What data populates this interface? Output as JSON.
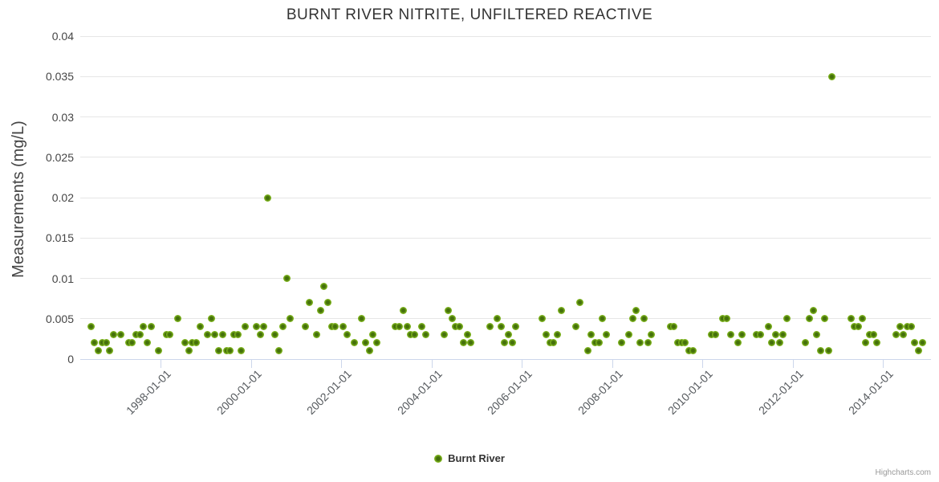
{
  "credits": {
    "label": "Highcharts.com"
  },
  "colors": {
    "marker_fill": "#7db31d",
    "marker_core": "#44700b",
    "grid": "#e6e6e6",
    "axis_line": "#ccd6eb",
    "title_text": "#333333",
    "axis_text": "#454545",
    "xlabel_text": "#565a5e",
    "legend_text": "#333333",
    "credit_text": "#999999",
    "background": "#ffffff"
  },
  "chart_data": {
    "type": "scatter",
    "title": "BURNT RIVER NITRITE, UNFILTERED REACTIVE",
    "xlabel": "",
    "ylabel": "Measurements (mg/L)",
    "ylim": [
      0,
      0.04
    ],
    "ytick_values": [
      0,
      0.005,
      0.01,
      0.015,
      0.02,
      0.025,
      0.03,
      0.035,
      0.04
    ],
    "ytick_labels": [
      "0",
      "0.005",
      "0.01",
      "0.015",
      "0.02",
      "0.025",
      "0.03",
      "0.035",
      "0.04"
    ],
    "xtick_labels": [
      "1998-01-01",
      "2000-01-01",
      "2002-01-01",
      "2004-01-01",
      "2006-01-01",
      "2008-01-01",
      "2010-01-01",
      "2012-01-01",
      "2014-01-01"
    ],
    "x_range_years": [
      1996.2,
      2015.1
    ],
    "grid": true,
    "legend": {
      "position": "bottom-center",
      "items": [
        {
          "label": "Burnt River",
          "color": "#7db31d"
        }
      ]
    },
    "series": [
      {
        "name": "Burnt River",
        "points": [
          [
            "1996-06",
            0.004
          ],
          [
            "1996-07",
            0.002
          ],
          [
            "1996-08",
            0.001
          ],
          [
            "1996-09",
            0.002
          ],
          [
            "1996-10",
            0.002
          ],
          [
            "1996-11",
            0.001
          ],
          [
            "1996-12",
            0.003
          ],
          [
            "1997-02",
            0.003
          ],
          [
            "1997-04",
            0.002
          ],
          [
            "1997-05",
            0.002
          ],
          [
            "1997-06",
            0.003
          ],
          [
            "1997-07",
            0.003
          ],
          [
            "1997-08",
            0.004
          ],
          [
            "1997-09",
            0.002
          ],
          [
            "1997-10",
            0.004
          ],
          [
            "1997-12",
            0.001
          ],
          [
            "1998-02",
            0.003
          ],
          [
            "1998-03",
            0.003
          ],
          [
            "1998-05",
            0.005
          ],
          [
            "1998-07",
            0.002
          ],
          [
            "1998-08",
            0.001
          ],
          [
            "1998-09",
            0.002
          ],
          [
            "1998-10",
            0.002
          ],
          [
            "1998-11",
            0.004
          ],
          [
            "1999-01",
            0.003
          ],
          [
            "1999-02",
            0.005
          ],
          [
            "1999-03",
            0.003
          ],
          [
            "1999-04",
            0.001
          ],
          [
            "1999-05",
            0.003
          ],
          [
            "1999-06",
            0.001
          ],
          [
            "1999-07",
            0.001
          ],
          [
            "1999-08",
            0.003
          ],
          [
            "1999-09",
            0.003
          ],
          [
            "1999-10",
            0.001
          ],
          [
            "1999-11",
            0.004
          ],
          [
            "2000-02",
            0.004
          ],
          [
            "2000-03",
            0.003
          ],
          [
            "2000-04",
            0.004
          ],
          [
            "2000-05",
            0.02
          ],
          [
            "2000-07",
            0.003
          ],
          [
            "2000-08",
            0.001
          ],
          [
            "2000-09",
            0.004
          ],
          [
            "2000-10",
            0.01
          ],
          [
            "2000-11",
            0.005
          ],
          [
            "2001-03",
            0.004
          ],
          [
            "2001-04",
            0.007
          ],
          [
            "2001-06",
            0.003
          ],
          [
            "2001-07",
            0.006
          ],
          [
            "2001-08",
            0.009
          ],
          [
            "2001-09",
            0.007
          ],
          [
            "2001-10",
            0.004
          ],
          [
            "2001-11",
            0.004
          ],
          [
            "2002-01",
            0.004
          ],
          [
            "2002-02",
            0.003
          ],
          [
            "2002-04",
            0.002
          ],
          [
            "2002-06",
            0.005
          ],
          [
            "2002-07",
            0.002
          ],
          [
            "2002-08",
            0.001
          ],
          [
            "2002-09",
            0.003
          ],
          [
            "2002-10",
            0.002
          ],
          [
            "2003-03",
            0.004
          ],
          [
            "2003-04",
            0.004
          ],
          [
            "2003-05",
            0.006
          ],
          [
            "2003-06",
            0.004
          ],
          [
            "2003-07",
            0.003
          ],
          [
            "2003-08",
            0.003
          ],
          [
            "2003-10",
            0.004
          ],
          [
            "2003-11",
            0.003
          ],
          [
            "2004-04",
            0.003
          ],
          [
            "2004-05",
            0.006
          ],
          [
            "2004-06",
            0.005
          ],
          [
            "2004-07",
            0.004
          ],
          [
            "2004-08",
            0.004
          ],
          [
            "2004-09",
            0.002
          ],
          [
            "2004-10",
            0.003
          ],
          [
            "2004-11",
            0.002
          ],
          [
            "2005-04",
            0.004
          ],
          [
            "2005-06",
            0.005
          ],
          [
            "2005-07",
            0.004
          ],
          [
            "2005-08",
            0.002
          ],
          [
            "2005-09",
            0.003
          ],
          [
            "2005-10",
            0.002
          ],
          [
            "2005-11",
            0.004
          ],
          [
            "2006-06",
            0.005
          ],
          [
            "2006-07",
            0.003
          ],
          [
            "2006-08",
            0.002
          ],
          [
            "2006-09",
            0.002
          ],
          [
            "2006-10",
            0.003
          ],
          [
            "2006-11",
            0.006
          ],
          [
            "2007-03",
            0.004
          ],
          [
            "2007-04",
            0.007
          ],
          [
            "2007-06",
            0.001
          ],
          [
            "2007-07",
            0.003
          ],
          [
            "2007-08",
            0.002
          ],
          [
            "2007-09",
            0.002
          ],
          [
            "2007-10",
            0.005
          ],
          [
            "2007-11",
            0.003
          ],
          [
            "2008-03",
            0.002
          ],
          [
            "2008-05",
            0.003
          ],
          [
            "2008-06",
            0.005
          ],
          [
            "2008-07",
            0.006
          ],
          [
            "2008-08",
            0.002
          ],
          [
            "2008-09",
            0.005
          ],
          [
            "2008-10",
            0.002
          ],
          [
            "2008-11",
            0.003
          ],
          [
            "2009-04",
            0.004
          ],
          [
            "2009-05",
            0.004
          ],
          [
            "2009-06",
            0.002
          ],
          [
            "2009-07",
            0.002
          ],
          [
            "2009-08",
            0.002
          ],
          [
            "2009-09",
            0.001
          ],
          [
            "2009-10",
            0.001
          ],
          [
            "2010-03",
            0.003
          ],
          [
            "2010-04",
            0.003
          ],
          [
            "2010-06",
            0.005
          ],
          [
            "2010-07",
            0.005
          ],
          [
            "2010-08",
            0.003
          ],
          [
            "2010-10",
            0.002
          ],
          [
            "2010-11",
            0.003
          ],
          [
            "2011-03",
            0.003
          ],
          [
            "2011-04",
            0.003
          ],
          [
            "2011-06",
            0.004
          ],
          [
            "2011-07",
            0.002
          ],
          [
            "2011-08",
            0.003
          ],
          [
            "2011-09",
            0.002
          ],
          [
            "2011-10",
            0.003
          ],
          [
            "2011-11",
            0.005
          ],
          [
            "2012-04",
            0.002
          ],
          [
            "2012-05",
            0.005
          ],
          [
            "2012-06",
            0.006
          ],
          [
            "2012-07",
            0.003
          ],
          [
            "2012-08",
            0.001
          ],
          [
            "2012-09",
            0.005
          ],
          [
            "2012-10",
            0.001
          ],
          [
            "2012-11",
            0.035
          ],
          [
            "2013-04",
            0.005
          ],
          [
            "2013-05",
            0.004
          ],
          [
            "2013-06",
            0.004
          ],
          [
            "2013-07",
            0.005
          ],
          [
            "2013-08",
            0.002
          ],
          [
            "2013-09",
            0.003
          ],
          [
            "2013-10",
            0.003
          ],
          [
            "2013-11",
            0.002
          ],
          [
            "2014-04",
            0.003
          ],
          [
            "2014-05",
            0.004
          ],
          [
            "2014-06",
            0.003
          ],
          [
            "2014-07",
            0.004
          ],
          [
            "2014-08",
            0.004
          ],
          [
            "2014-09",
            0.002
          ],
          [
            "2014-10",
            0.001
          ],
          [
            "2014-11",
            0.002
          ]
        ]
      }
    ]
  }
}
